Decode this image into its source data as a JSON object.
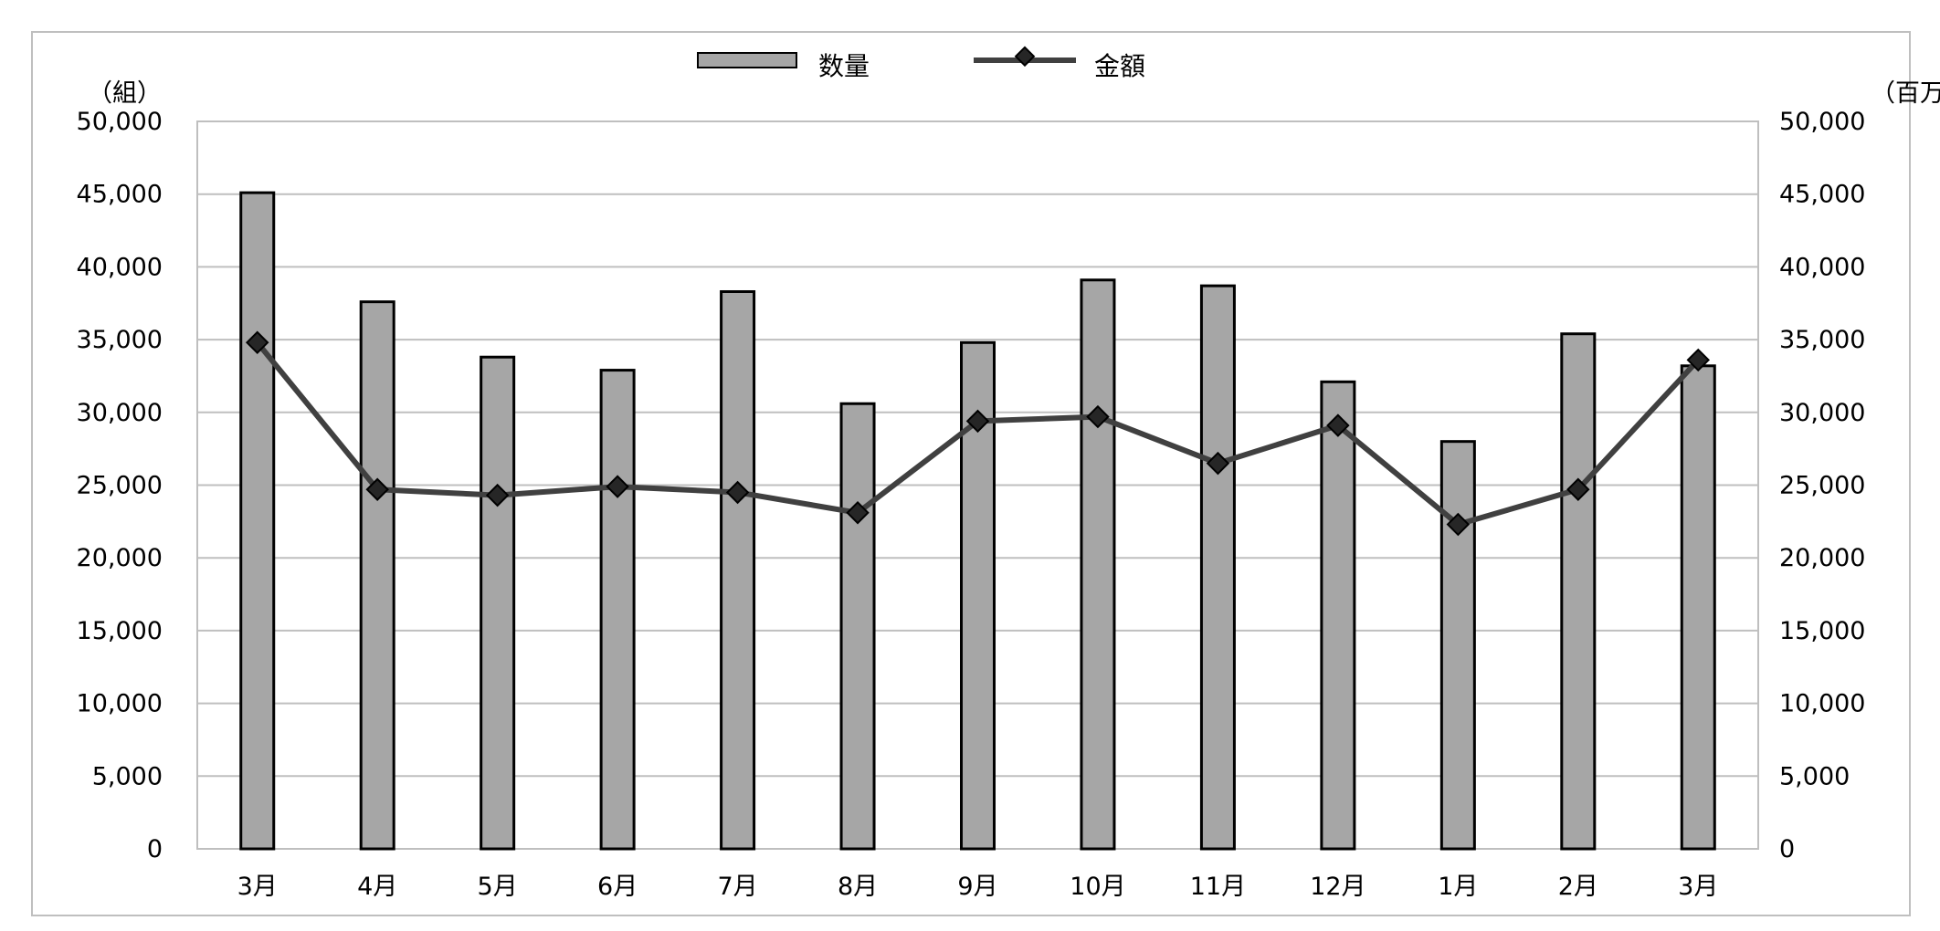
{
  "chart_data": {
    "type": "bar",
    "categories": [
      "3月",
      "4月",
      "5月",
      "6月",
      "7月",
      "8月",
      "9月",
      "10月",
      "11月",
      "12月",
      "1月",
      "2月",
      "3月"
    ],
    "series": [
      {
        "name": "数量",
        "type": "bar",
        "axis": "left",
        "values": [
          45100,
          37600,
          33800,
          32900,
          38300,
          30600,
          34800,
          39100,
          38700,
          32100,
          28000,
          35400,
          33200
        ],
        "color": "#a6a6a6"
      },
      {
        "name": "金額",
        "type": "line",
        "axis": "right",
        "values": [
          34800,
          24700,
          24300,
          24900,
          24500,
          23100,
          29400,
          29700,
          26500,
          29100,
          22300,
          24700,
          33600
        ],
        "color": "#404040"
      }
    ],
    "y_left": {
      "unit": "（組）",
      "min": 0,
      "max": 50000,
      "step": 5000
    },
    "y_right": {
      "unit": "（百万円）",
      "min": 0,
      "max": 50000,
      "step": 5000
    },
    "yticks": [
      "0",
      "5,000",
      "10,000",
      "15,000",
      "20,000",
      "25,000",
      "30,000",
      "35,000",
      "40,000",
      "45,000",
      "50,000"
    ],
    "legend": {
      "position": "top-center"
    },
    "grid": true
  }
}
